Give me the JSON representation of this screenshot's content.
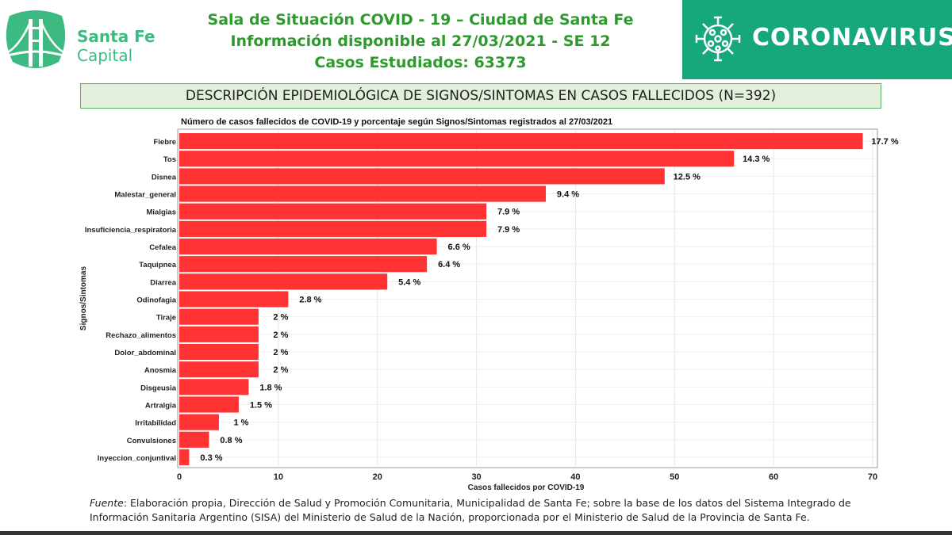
{
  "header": {
    "brand_line1": "Santa Fe",
    "brand_line2": "Capital",
    "title_line1": "Sala de Situación COVID - 19 – Ciudad de Santa Fe",
    "title_line2": "Información disponible al 27/03/2021 - SE 12",
    "title_line3": "Casos Estudiados: 63373",
    "coronavirus_label": "CORONAVIRUS",
    "icons": [
      "bridge-logo",
      "virus-icon"
    ],
    "colors": {
      "brand": "#3dba82",
      "title": "#2e9a2e",
      "banner_bg": "#16a77c"
    }
  },
  "banner": "DESCRIPCIÓN EPIDEMIOLÓGICA DE SIGNOS/SINTOMAS EN CASOS FALLECIDOS (N=392)",
  "chart_data": {
    "type": "bar",
    "orientation": "horizontal",
    "title": "Número de casos fallecidos de COVID-19 y porcentaje según Signos/Sintomas registrados al 27/03/2021",
    "xlabel": "Casos fallecidos por COVID-19",
    "ylabel": "Signos/Sintomas",
    "xlim": [
      0,
      70
    ],
    "xticks": [
      0,
      10,
      20,
      30,
      40,
      50,
      60,
      70
    ],
    "grid": true,
    "bar_color": "#ff3333",
    "categories": [
      "Fiebre",
      "Tos",
      "Disnea",
      "Malestar_general",
      "Mialgias",
      "Insuficiencia_respiratoria",
      "Cefalea",
      "Taquipnea",
      "Diarrea",
      "Odinofagia",
      "Tiraje",
      "Rechazo_alimentos",
      "Dolor_abdominal",
      "Anosmia",
      "Disgeusia",
      "Artralgia",
      "Irritabilidad",
      "Convulsiones",
      "Inyeccion_conjuntival"
    ],
    "values": [
      69,
      56,
      49,
      37,
      31,
      31,
      26,
      25,
      21,
      11,
      8,
      8,
      8,
      8,
      7,
      6,
      4,
      3,
      1
    ],
    "labels": [
      "17.7 %",
      "14.3 %",
      "12.5 %",
      "9.4 %",
      "7.9 %",
      "7.9 %",
      "6.6 %",
      "6.4 %",
      "5.4 %",
      "2.8 %",
      "2 %",
      "2 %",
      "2 %",
      "2 %",
      "1.8 %",
      "1.5 %",
      "1 %",
      "0.8 %",
      "0.3 %"
    ]
  },
  "footer": {
    "fuente_label": "Fuente",
    "fuente_text": ": Elaboración propia, Dirección de Salud y Promoción Comunitaria, Municipalidad de Santa Fe; sobre la base de los datos del Sistema Integrado de Información Sanitaria Argentino (SISA) del Ministerio de Salud de la Nación, proporcionada por el Ministerio de Salud de la Provincia de Santa Fe."
  }
}
